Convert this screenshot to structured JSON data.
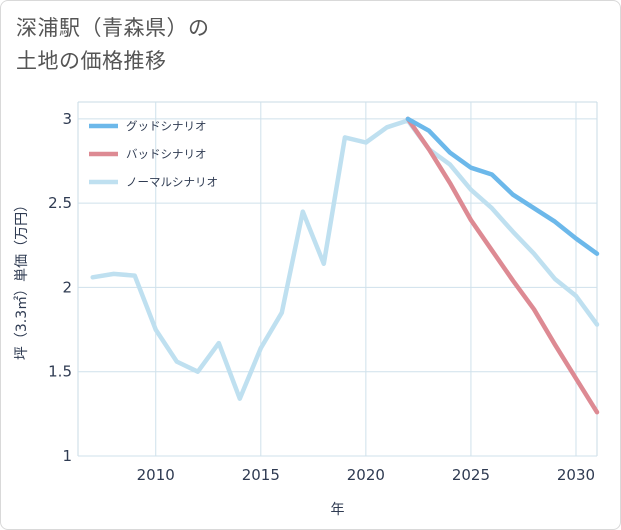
{
  "title": {
    "line1": "深浦駅（青森県）の",
    "line2": "土地の価格推移"
  },
  "chart_data": {
    "type": "line",
    "xlabel": "年",
    "ylabel": "坪（3.3㎡）単価（万円）",
    "xlim": [
      2006.3,
      2031
    ],
    "ylim": [
      1,
      3.1
    ],
    "xticks": [
      2010,
      2015,
      2020,
      2025,
      2030
    ],
    "yticks": [
      1,
      1.5,
      2,
      2.5,
      3
    ],
    "ytick_labels": [
      "1",
      "1.5",
      "2",
      "2.5",
      "3"
    ],
    "grid": true,
    "legend_position": "top-left",
    "series": [
      {
        "name": "グッドシナリオ",
        "color": "#6cb8ea",
        "x": [
          2022,
          2023,
          2024,
          2025,
          2026,
          2027,
          2028,
          2029,
          2030,
          2031
        ],
        "y": [
          3.0,
          2.93,
          2.8,
          2.71,
          2.67,
          2.55,
          2.47,
          2.39,
          2.29,
          2.2
        ]
      },
      {
        "name": "バッドシナリオ",
        "color": "#dd8a93",
        "x": [
          2022,
          2023,
          2024,
          2025,
          2026,
          2027,
          2028,
          2029,
          2030,
          2031
        ],
        "y": [
          3.0,
          2.82,
          2.62,
          2.4,
          2.22,
          2.04,
          1.87,
          1.66,
          1.46,
          1.26
        ]
      },
      {
        "name": "ノーマルシナリオ",
        "color": "#bfe0f0",
        "x": [
          2007,
          2008,
          2009,
          2010,
          2011,
          2012,
          2013,
          2014,
          2015,
          2016,
          2017,
          2018,
          2019,
          2020,
          2021,
          2022,
          2023,
          2024,
          2025,
          2026,
          2027,
          2028,
          2029,
          2030,
          2031
        ],
        "y": [
          2.06,
          2.08,
          2.07,
          1.75,
          1.56,
          1.5,
          1.67,
          1.34,
          1.64,
          1.85,
          2.45,
          2.14,
          2.89,
          2.86,
          2.95,
          2.99,
          2.82,
          2.73,
          2.58,
          2.47,
          2.33,
          2.2,
          2.05,
          1.95,
          1.78
        ]
      }
    ]
  }
}
